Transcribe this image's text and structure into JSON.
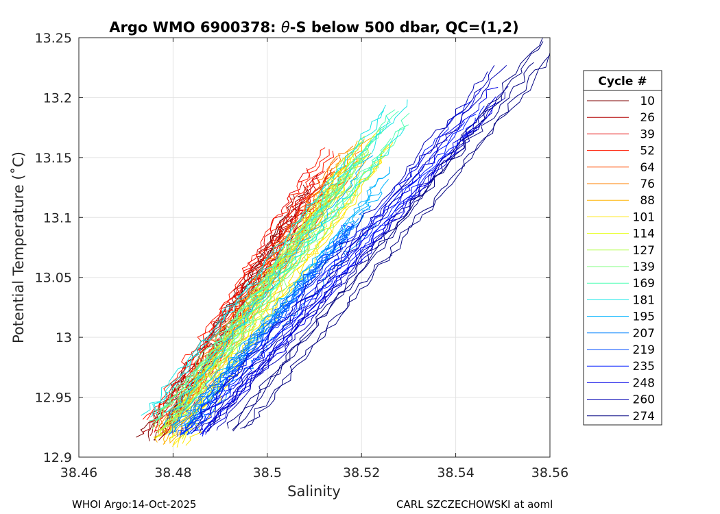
{
  "chart_data": {
    "type": "line",
    "title": "Argo WMO 6900378: θ-S below 500 dbar,  QC=(1,2)",
    "title_parts": {
      "before": "Argo WMO 6900378: ",
      "symbol": "θ",
      "after": "-S below 500 dbar,  QC=(1,2)"
    },
    "xlabel": "Salinity",
    "ylabel": "Potential Temperature (˚C)",
    "xlim": [
      38.46,
      38.56
    ],
    "ylim": [
      12.9,
      13.25
    ],
    "xticks": [
      "38.46",
      "38.48",
      "38.5",
      "38.52",
      "38.54",
      "38.56"
    ],
    "yticks": [
      "12.9",
      "12.95",
      "13",
      "13.05",
      "13.1",
      "13.15",
      "13.2",
      "13.25"
    ],
    "grid": true,
    "legend": {
      "title": "Cycle #",
      "placement": "right-outside",
      "entries": [
        "10",
        "26",
        "39",
        "52",
        "64",
        "76",
        "88",
        "101",
        "114",
        "127",
        "139",
        "169",
        "181",
        "195",
        "207",
        "219",
        "235",
        "248",
        "260",
        "274"
      ],
      "colors": [
        "#7f0000",
        "#b20000",
        "#e50000",
        "#ff1a00",
        "#ff4d00",
        "#ff8000",
        "#ffb300",
        "#ffe600",
        "#e6ff1a",
        "#b3ff4d",
        "#80ff80",
        "#4dffb3",
        "#1ae6e6",
        "#00b3ff",
        "#0080ff",
        "#004dff",
        "#001aff",
        "#0000e6",
        "#0000b3",
        "#000080"
      ]
    },
    "series": [
      {
        "name": "10",
        "color": "#7f0000",
        "profile": {
          "s_warm": 38.507,
          "s_cold": 38.476,
          "t_warm": 13.13,
          "t_cold": 12.915
        }
      },
      {
        "name": "26",
        "color": "#b20000",
        "profile": {
          "s_warm": 38.512,
          "s_cold": 38.476,
          "t_warm": 13.15,
          "t_cold": 12.918
        }
      },
      {
        "name": "39",
        "color": "#e50000",
        "profile": {
          "s_warm": 38.51,
          "s_cold": 38.477,
          "t_warm": 13.145,
          "t_cold": 12.92
        }
      },
      {
        "name": "52",
        "color": "#ff1a00",
        "profile": {
          "s_warm": 38.515,
          "s_cold": 38.477,
          "t_warm": 13.16,
          "t_cold": 12.93
        }
      },
      {
        "name": "64",
        "color": "#ff4d00",
        "profile": {
          "s_warm": 38.516,
          "s_cold": 38.478,
          "t_warm": 13.16,
          "t_cold": 12.925
        }
      },
      {
        "name": "76",
        "color": "#ff8000",
        "profile": {
          "s_warm": 38.518,
          "s_cold": 38.479,
          "t_warm": 13.165,
          "t_cold": 12.92
        }
      },
      {
        "name": "88",
        "color": "#ffb300",
        "profile": {
          "s_warm": 38.522,
          "s_cold": 38.479,
          "t_warm": 13.18,
          "t_cold": 12.912
        }
      },
      {
        "name": "101",
        "color": "#ffe600",
        "profile": {
          "s_warm": 38.524,
          "s_cold": 38.48,
          "t_warm": 13.18,
          "t_cold": 12.91
        }
      },
      {
        "name": "114",
        "color": "#e6ff1a",
        "profile": {
          "s_warm": 38.52,
          "s_cold": 38.479,
          "t_warm": 13.17,
          "t_cold": 12.915
        }
      },
      {
        "name": "127",
        "color": "#b3ff4d",
        "profile": {
          "s_warm": 38.518,
          "s_cold": 38.478,
          "t_warm": 13.16,
          "t_cold": 12.92
        }
      },
      {
        "name": "139",
        "color": "#80ff80",
        "profile": {
          "s_warm": 38.522,
          "s_cold": 38.478,
          "t_warm": 13.175,
          "t_cold": 12.925
        }
      },
      {
        "name": "169",
        "color": "#4dffb3",
        "profile": {
          "s_warm": 38.528,
          "s_cold": 38.477,
          "t_warm": 13.19,
          "t_cold": 12.93
        }
      },
      {
        "name": "181",
        "color": "#1ae6e6",
        "profile": {
          "s_warm": 38.527,
          "s_cold": 38.476,
          "t_warm": 13.2,
          "t_cold": 12.935
        }
      },
      {
        "name": "195",
        "color": "#00b3ff",
        "profile": {
          "s_warm": 38.524,
          "s_cold": 38.48,
          "t_warm": 13.15,
          "t_cold": 12.925
        }
      },
      {
        "name": "207",
        "color": "#0080ff",
        "profile": {
          "s_warm": 38.52,
          "s_cold": 38.481,
          "t_warm": 13.12,
          "t_cold": 12.92
        }
      },
      {
        "name": "219",
        "color": "#004dff",
        "profile": {
          "s_warm": 38.518,
          "s_cold": 38.482,
          "t_warm": 13.1,
          "t_cold": 12.918
        }
      },
      {
        "name": "235",
        "color": "#001aff",
        "profile": {
          "s_warm": 38.545,
          "s_cold": 38.484,
          "t_warm": 13.2,
          "t_cold": 12.918
        }
      },
      {
        "name": "248",
        "color": "#0000e6",
        "profile": {
          "s_warm": 38.547,
          "s_cold": 38.485,
          "t_warm": 13.22,
          "t_cold": 12.92
        }
      },
      {
        "name": "260",
        "color": "#0000b3",
        "profile": {
          "s_warm": 38.549,
          "s_cold": 38.486,
          "t_warm": 13.23,
          "t_cold": 12.922
        }
      },
      {
        "name": "274",
        "color": "#000080",
        "profile": {
          "s_warm": 38.56,
          "s_cold": 38.494,
          "t_warm": 13.25,
          "t_cold": 12.923
        }
      }
    ]
  },
  "footer": {
    "left": "WHOI Argo:14-Oct-2025",
    "right": "CARL SZCZECHOWSKI at aoml"
  }
}
